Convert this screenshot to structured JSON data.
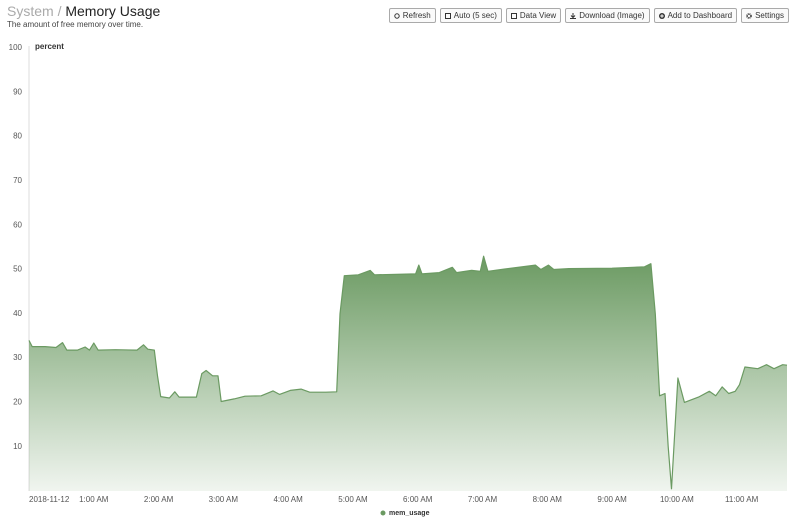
{
  "header": {
    "breadcrumb": "System",
    "separator": "/",
    "title": "Memory Usage",
    "subtitle": "The amount of free memory over time."
  },
  "toolbar": {
    "buttons": [
      "Refresh",
      "Auto (5 sec)",
      "Data View",
      "Download (Image)",
      "Add to Dashboard",
      "Settings"
    ]
  },
  "chart_data": {
    "type": "area",
    "y_label": "percent",
    "x": [
      0,
      3,
      15,
      25,
      31,
      35,
      45,
      52,
      56,
      60,
      64,
      80,
      100,
      106,
      110,
      116,
      119,
      122,
      130,
      135,
      139,
      155,
      160,
      164,
      170,
      175,
      178,
      190,
      200,
      215,
      226,
      232,
      242,
      252,
      260,
      275,
      285,
      288,
      292,
      305,
      316,
      320,
      340,
      358,
      361,
      364,
      380,
      392,
      396,
      410,
      418,
      421,
      425,
      440,
      469,
      474,
      481,
      486,
      500,
      540,
      570,
      576,
      580,
      584,
      589,
      592,
      595,
      601,
      607,
      620,
      630,
      636,
      642,
      648,
      654,
      658,
      663,
      675,
      683,
      690,
      698,
      702
    ],
    "series": [
      {
        "name": "mem_usage",
        "color": "#6b9a62",
        "values": [
          34,
          32.6,
          32.6,
          32.4,
          33.5,
          31.8,
          31.8,
          32.5,
          31.8,
          33.4,
          31.8,
          31.9,
          31.8,
          33,
          32,
          31.8,
          26,
          21.3,
          21,
          22.4,
          21.2,
          21.2,
          26.5,
          27.2,
          26,
          26,
          20.2,
          20.8,
          21.4,
          21.5,
          22.6,
          21.8,
          22.7,
          23,
          22.3,
          22.3,
          22.4,
          40,
          48.6,
          48.8,
          49.8,
          48.8,
          48.9,
          49,
          51,
          49,
          49.3,
          50.5,
          49.3,
          49.8,
          49.6,
          53,
          49.6,
          50.1,
          51,
          50,
          51,
          50,
          50.2,
          50.3,
          50.6,
          51.3,
          40,
          21.5,
          22,
          10,
          0.5,
          25.5,
          20,
          21.2,
          22.5,
          21.5,
          23.5,
          22,
          22.5,
          24,
          28,
          27.6,
          28.5,
          27.6,
          28.5,
          28.4
        ]
      }
    ],
    "xlim": [
      0,
      702
    ],
    "xticks": [
      {
        "value": 0,
        "label": "2018-11-12"
      },
      {
        "value": 60,
        "label": "1:00 AM"
      },
      {
        "value": 120,
        "label": "2:00 AM"
      },
      {
        "value": 180,
        "label": "3:00 AM"
      },
      {
        "value": 240,
        "label": "4:00 AM"
      },
      {
        "value": 300,
        "label": "5:00 AM"
      },
      {
        "value": 360,
        "label": "6:00 AM"
      },
      {
        "value": 420,
        "label": "7:00 AM"
      },
      {
        "value": 480,
        "label": "8:00 AM"
      },
      {
        "value": 540,
        "label": "9:00 AM"
      },
      {
        "value": 600,
        "label": "10:00 AM"
      },
      {
        "value": 660,
        "label": "11:00 AM"
      }
    ],
    "ylim": [
      0,
      100
    ],
    "yticks": [
      10,
      20,
      30,
      40,
      50,
      60,
      70,
      80,
      90,
      100
    ],
    "legend": "bottom"
  }
}
